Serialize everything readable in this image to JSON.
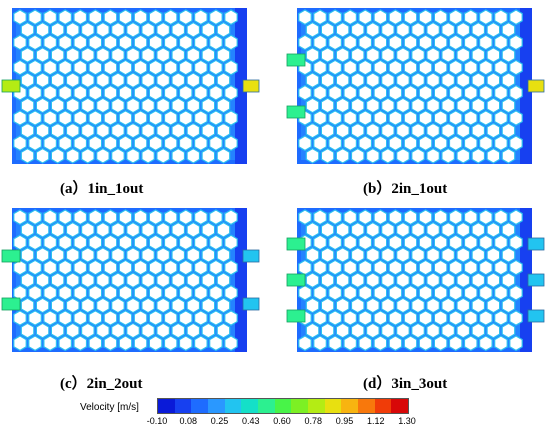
{
  "panels": [
    {
      "caption": "(a）1in_1out",
      "inlets": 1,
      "outlets": 1
    },
    {
      "caption": "(b）2in_1out",
      "inlets": 2,
      "outlets": 1
    },
    {
      "caption": "(c）2in_2out",
      "inlets": 2,
      "outlets": 2
    },
    {
      "caption": "(d）3in_3out",
      "inlets": 3,
      "outlets": 3
    }
  ],
  "legend": {
    "title": "Velocity [m/s]",
    "ticks": [
      "-0.10",
      "0.08",
      "0.25",
      "0.43",
      "0.60",
      "0.78",
      "0.95",
      "1.12",
      "1.30"
    ],
    "colors": [
      "#0a1ad8",
      "#1740f0",
      "#1e6cff",
      "#2a98ff",
      "#22c4f0",
      "#14e0c8",
      "#2cf090",
      "#48f448",
      "#7cf024",
      "#b4ec14",
      "#e8e010",
      "#f8b410",
      "#f8780c",
      "#f03c08",
      "#d80808"
    ]
  }
}
